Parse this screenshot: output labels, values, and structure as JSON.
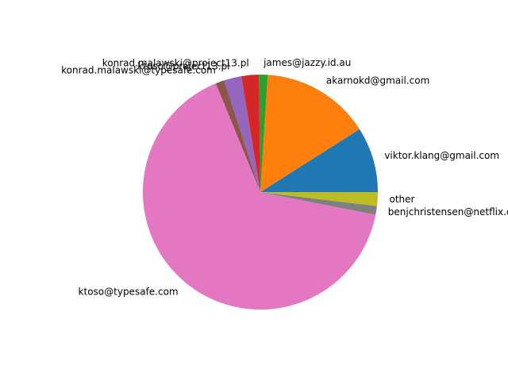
{
  "chart_data": {
    "type": "pie",
    "start_angle_deg": 0,
    "direction": "counterclockwise",
    "slices": [
      {
        "label": "viktor.klang@gmail.com",
        "value": 9.0,
        "color": "#1f77b4"
      },
      {
        "label": "akarnokd@gmail.com",
        "value": 15.0,
        "color": "#ff7f0e"
      },
      {
        "label": "james@jazzy.id.au",
        "value": 1.2,
        "color": "#2ca02c"
      },
      {
        "label": "konrad.malawski@project13.pl",
        "value": 2.4,
        "color": "#d62728"
      },
      {
        "label": "ktoso@project13.pl",
        "value": 2.4,
        "color": "#9467bd"
      },
      {
        "label": "konrad.malawski@typesafe.com",
        "value": 1.2,
        "color": "#8c564b"
      },
      {
        "label": "ktoso@typesafe.com",
        "value": 65.7,
        "color": "#e377c2"
      },
      {
        "label": "benjchristensen@netflix.com",
        "value": 1.2,
        "color": "#7f7f7f"
      },
      {
        "label": "other",
        "value": 1.9,
        "color": "#bcbd22"
      }
    ]
  }
}
